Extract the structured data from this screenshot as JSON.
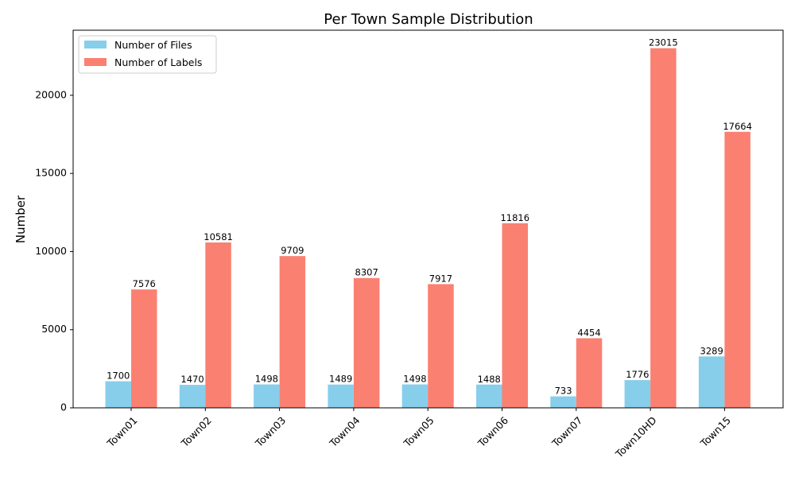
{
  "chart_data": {
    "type": "bar",
    "title": "Per Town Sample Distribution",
    "xlabel": "",
    "ylabel": "Number",
    "categories": [
      "Town01",
      "Town02",
      "Town03",
      "Town04",
      "Town05",
      "Town06",
      "Town07",
      "Town10HD",
      "Town15"
    ],
    "series": [
      {
        "name": "Number of Files",
        "color": "#87ceeb",
        "values": [
          1700,
          1470,
          1498,
          1489,
          1498,
          1488,
          733,
          1776,
          3289
        ]
      },
      {
        "name": "Number of Labels",
        "color": "#fa8072",
        "values": [
          7576,
          10581,
          9709,
          8307,
          7917,
          11816,
          4454,
          23015,
          17664
        ]
      }
    ],
    "ylim": [
      0,
      24166
    ],
    "yticks": [
      0,
      5000,
      10000,
      15000,
      20000
    ],
    "ytick_labels": [
      "0",
      "5000",
      "10000",
      "15000",
      "20000"
    ],
    "grid": false,
    "legend_position": "top-left"
  }
}
